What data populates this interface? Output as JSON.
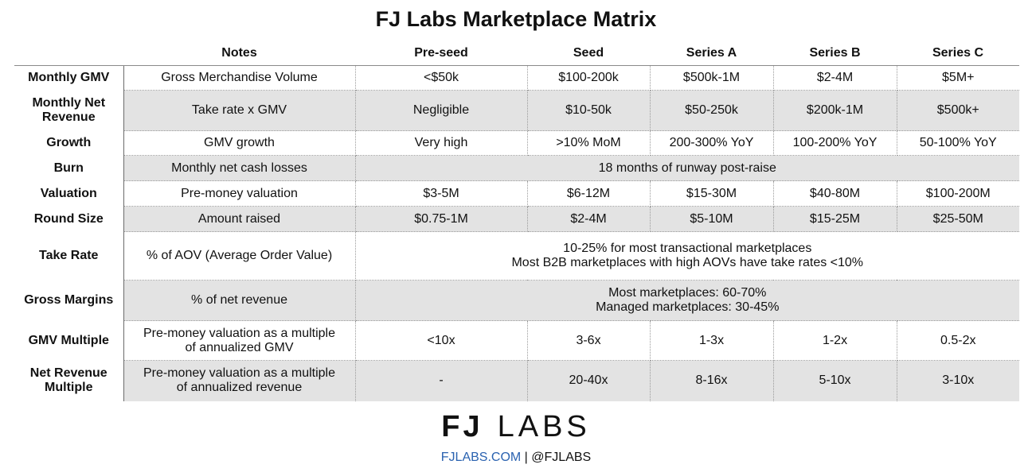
{
  "title": "FJ Labs Marketplace Matrix",
  "headers": {
    "label": "",
    "notes": "Notes",
    "pre_seed": "Pre-seed",
    "seed": "Seed",
    "series_a": "Series A",
    "series_b": "Series B",
    "series_c": "Series C"
  },
  "rows": {
    "monthly_gmv": {
      "label": "Monthly GMV",
      "notes": "Gross Merchandise Volume",
      "pre_seed": "<$50k",
      "seed": "$100-200k",
      "series_a": "$500k-1M",
      "series_b": "$2-4M",
      "series_c": "$5M+"
    },
    "monthly_net_revenue": {
      "label_l1": "Monthly Net",
      "label_l2": "Revenue",
      "notes": "Take rate x GMV",
      "pre_seed": "Negligible",
      "seed": "$10-50k",
      "series_a": "$50-250k",
      "series_b": "$200k-1M",
      "series_c": "$500k+"
    },
    "growth": {
      "label": "Growth",
      "notes": "GMV growth",
      "pre_seed": "Very high",
      "seed": ">10% MoM",
      "series_a": "200-300% YoY",
      "series_b": "100-200% YoY",
      "series_c": "50-100% YoY"
    },
    "burn": {
      "label": "Burn",
      "notes": "Monthly net cash losses",
      "value": "18 months of runway post-raise"
    },
    "valuation": {
      "label": "Valuation",
      "notes": "Pre-money valuation",
      "pre_seed": "$3-5M",
      "seed": "$6-12M",
      "series_a": "$15-30M",
      "series_b": "$40-80M",
      "series_c": "$100-200M"
    },
    "round_size": {
      "label": "Round Size",
      "notes": "Amount raised",
      "pre_seed": "$0.75-1M",
      "seed": "$2-4M",
      "series_a": "$5-10M",
      "series_b": "$15-25M",
      "series_c": "$25-50M"
    },
    "take_rate": {
      "label": "Take Rate",
      "notes": "% of AOV (Average Order Value)",
      "value_l1": "10-25% for most transactional marketplaces",
      "value_l2": "Most B2B marketplaces with high AOVs have take rates <10%"
    },
    "gross_margins": {
      "label": "Gross Margins",
      "notes": "% of net revenue",
      "value_l1": "Most marketplaces: 60-70%",
      "value_l2": "Managed marketplaces: 30-45%"
    },
    "gmv_multiple": {
      "label": "GMV Multiple",
      "notes_l1": "Pre-money valuation as a multiple",
      "notes_l2": "of annualized GMV",
      "pre_seed": "<10x",
      "seed": "3-6x",
      "series_a": "1-3x",
      "series_b": "1-2x",
      "series_c": "0.5-2x"
    },
    "net_revenue_multiple": {
      "label_l1": "Net Revenue",
      "label_l2": "Multiple",
      "notes_l1": "Pre-money valuation as a multiple",
      "notes_l2": "of annualized revenue",
      "pre_seed": "-",
      "seed": "20-40x",
      "series_a": "8-16x",
      "series_b": "5-10x",
      "series_c": "3-10x"
    }
  },
  "logo": {
    "fj": "FJ",
    "labs": "LABS"
  },
  "footer": {
    "site": "FJLABS.COM",
    "separator": " | ",
    "handle": "@FJLABS"
  },
  "colors": {
    "shade": "#e3e3e3",
    "link": "#2a62b0",
    "text": "#111111"
  }
}
